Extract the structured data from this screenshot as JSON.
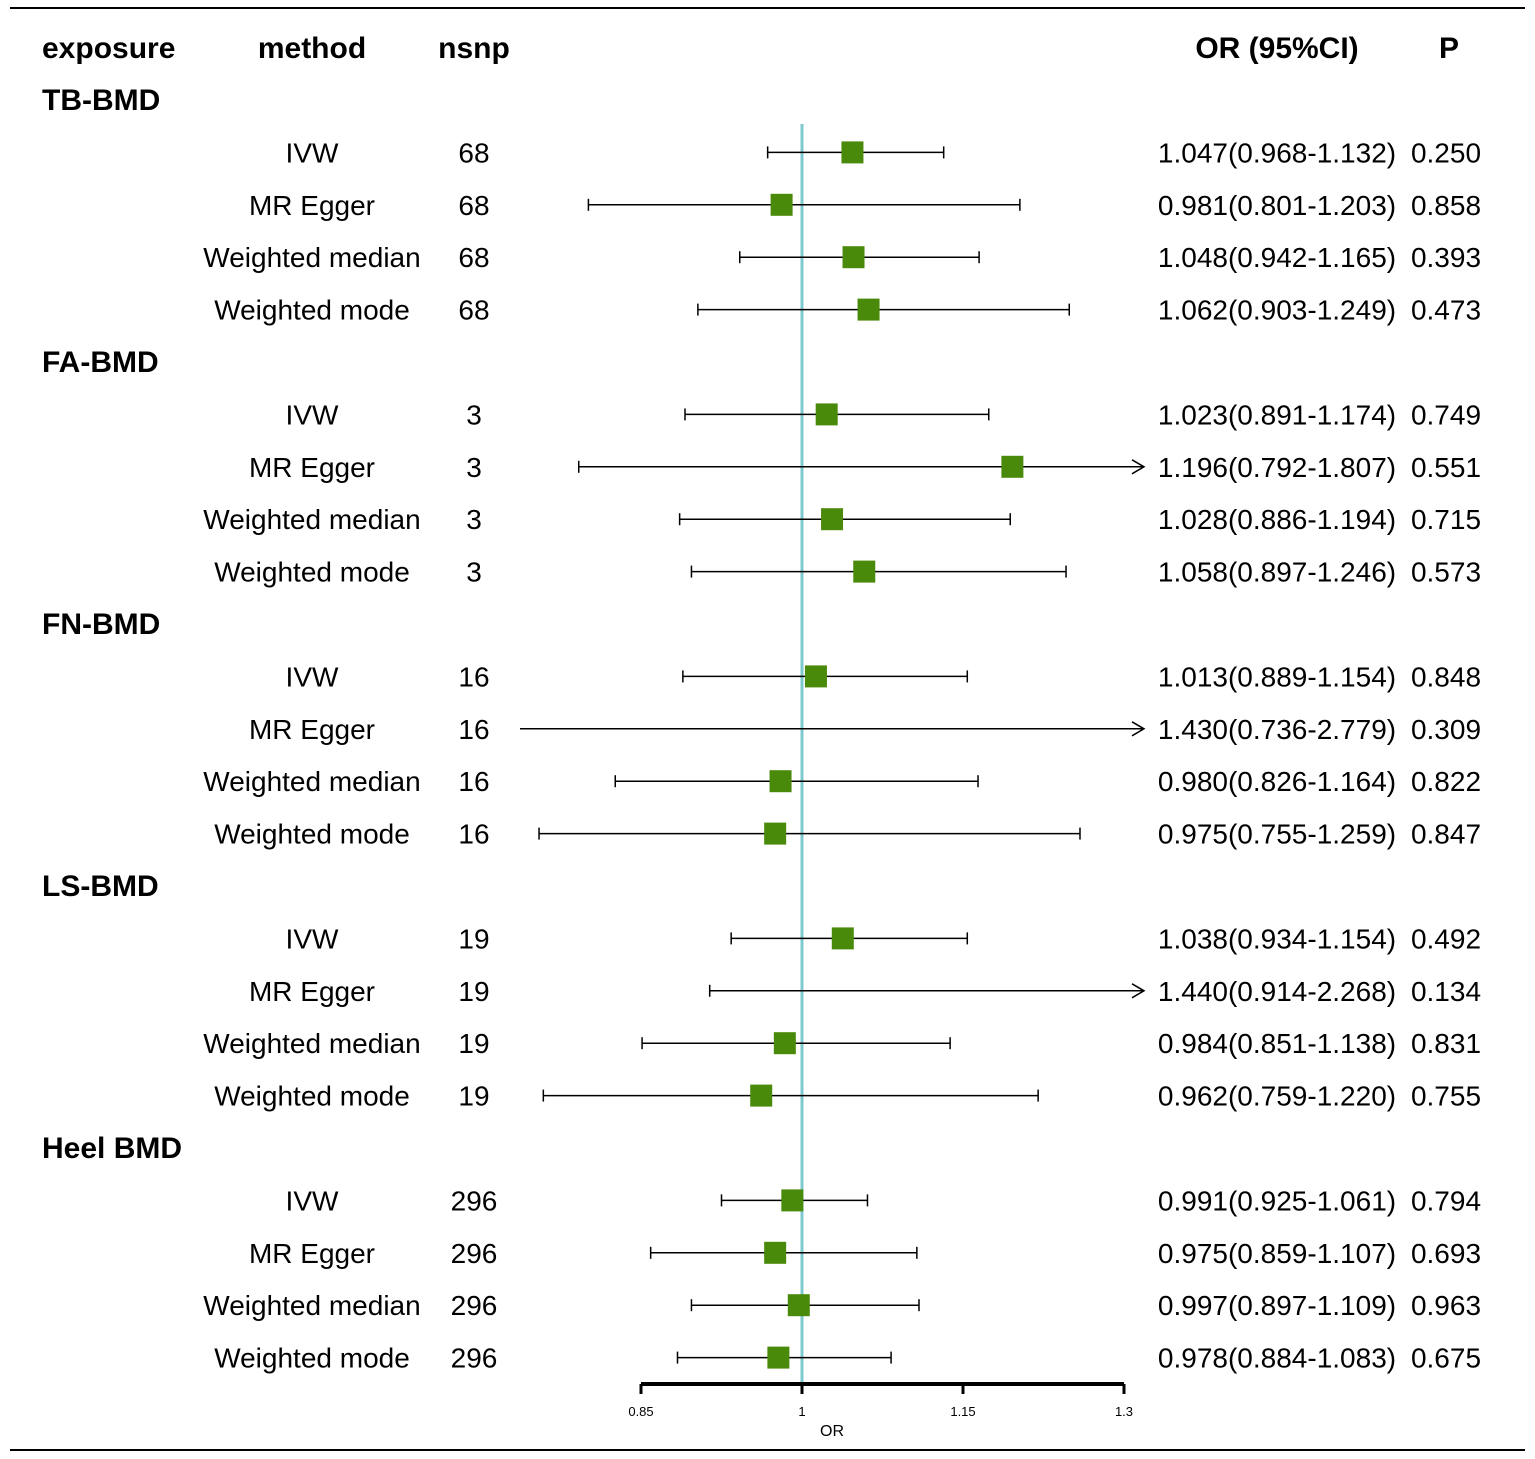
{
  "headers": {
    "exposure": "exposure",
    "method": "method",
    "nsnp": "nsnp",
    "or_ci": "OR (95%CI)",
    "p": "P"
  },
  "colors": {
    "marker": "#4a8a0a",
    "reference_line": "#7ec8cf",
    "line": "#000000"
  },
  "chart_data": {
    "type": "forest",
    "xlabel": "OR",
    "xlim": [
      0.85,
      1.3
    ],
    "xticks": [
      "0.85",
      "1",
      "1.15",
      "1.3"
    ],
    "reference": 1,
    "groups": [
      {
        "exposure": "TB-BMD",
        "rows": [
          {
            "method": "IVW",
            "nsnp": "68",
            "or": 1.047,
            "lo": 0.968,
            "hi": 1.132,
            "or_ci": "1.047(0.968-1.132)",
            "p": "0.250"
          },
          {
            "method": "MR Egger",
            "nsnp": "68",
            "or": 0.981,
            "lo": 0.801,
            "hi": 1.203,
            "or_ci": "0.981(0.801-1.203)",
            "p": "0.858"
          },
          {
            "method": "Weighted median",
            "nsnp": "68",
            "or": 1.048,
            "lo": 0.942,
            "hi": 1.165,
            "or_ci": "1.048(0.942-1.165)",
            "p": "0.393"
          },
          {
            "method": "Weighted mode",
            "nsnp": "68",
            "or": 1.062,
            "lo": 0.903,
            "hi": 1.249,
            "or_ci": "1.062(0.903-1.249)",
            "p": "0.473"
          }
        ]
      },
      {
        "exposure": "FA-BMD",
        "rows": [
          {
            "method": "IVW",
            "nsnp": "3",
            "or": 1.023,
            "lo": 0.891,
            "hi": 1.174,
            "or_ci": "1.023(0.891-1.174)",
            "p": "0.749"
          },
          {
            "method": "MR Egger",
            "nsnp": "3",
            "or": 1.196,
            "lo": 0.792,
            "hi": 1.807,
            "or_ci": "1.196(0.792-1.807)",
            "p": "0.551"
          },
          {
            "method": "Weighted median",
            "nsnp": "3",
            "or": 1.028,
            "lo": 0.886,
            "hi": 1.194,
            "or_ci": "1.028(0.886-1.194)",
            "p": "0.715"
          },
          {
            "method": "Weighted mode",
            "nsnp": "3",
            "or": 1.058,
            "lo": 0.897,
            "hi": 1.246,
            "or_ci": "1.058(0.897-1.246)",
            "p": "0.573"
          }
        ]
      },
      {
        "exposure": "FN-BMD",
        "rows": [
          {
            "method": "IVW",
            "nsnp": "16",
            "or": 1.013,
            "lo": 0.889,
            "hi": 1.154,
            "or_ci": "1.013(0.889-1.154)",
            "p": "0.848"
          },
          {
            "method": "MR Egger",
            "nsnp": "16",
            "or": 1.43,
            "lo": 0.736,
            "hi": 2.779,
            "or_ci": "1.430(0.736-2.779)",
            "p": "0.309"
          },
          {
            "method": "Weighted median",
            "nsnp": "16",
            "or": 0.98,
            "lo": 0.826,
            "hi": 1.164,
            "or_ci": "0.980(0.826-1.164)",
            "p": "0.822"
          },
          {
            "method": "Weighted mode",
            "nsnp": "16",
            "or": 0.975,
            "lo": 0.755,
            "hi": 1.259,
            "or_ci": "0.975(0.755-1.259)",
            "p": "0.847"
          }
        ]
      },
      {
        "exposure": "LS-BMD",
        "rows": [
          {
            "method": "IVW",
            "nsnp": "19",
            "or": 1.038,
            "lo": 0.934,
            "hi": 1.154,
            "or_ci": "1.038(0.934-1.154)",
            "p": "0.492"
          },
          {
            "method": "MR Egger",
            "nsnp": "19",
            "or": 1.44,
            "lo": 0.914,
            "hi": 2.268,
            "or_ci": "1.440(0.914-2.268)",
            "p": "0.134"
          },
          {
            "method": "Weighted median",
            "nsnp": "19",
            "or": 0.984,
            "lo": 0.851,
            "hi": 1.138,
            "or_ci": "0.984(0.851-1.138)",
            "p": "0.831"
          },
          {
            "method": "Weighted mode",
            "nsnp": "19",
            "or": 0.962,
            "lo": 0.759,
            "hi": 1.22,
            "or_ci": "0.962(0.759-1.220)",
            "p": "0.755"
          }
        ]
      },
      {
        "exposure": "Heel BMD",
        "rows": [
          {
            "method": "IVW",
            "nsnp": "296",
            "or": 0.991,
            "lo": 0.925,
            "hi": 1.061,
            "or_ci": "0.991(0.925-1.061)",
            "p": "0.794"
          },
          {
            "method": "MR Egger",
            "nsnp": "296",
            "or": 0.975,
            "lo": 0.859,
            "hi": 1.107,
            "or_ci": "0.975(0.859-1.107)",
            "p": "0.693"
          },
          {
            "method": "Weighted median",
            "nsnp": "296",
            "or": 0.997,
            "lo": 0.897,
            "hi": 1.109,
            "or_ci": "0.997(0.897-1.109)",
            "p": "0.963"
          },
          {
            "method": "Weighted mode",
            "nsnp": "296",
            "or": 0.978,
            "lo": 0.884,
            "hi": 1.083,
            "or_ci": "0.978(0.884-1.083)",
            "p": "0.675"
          }
        ]
      }
    ]
  }
}
